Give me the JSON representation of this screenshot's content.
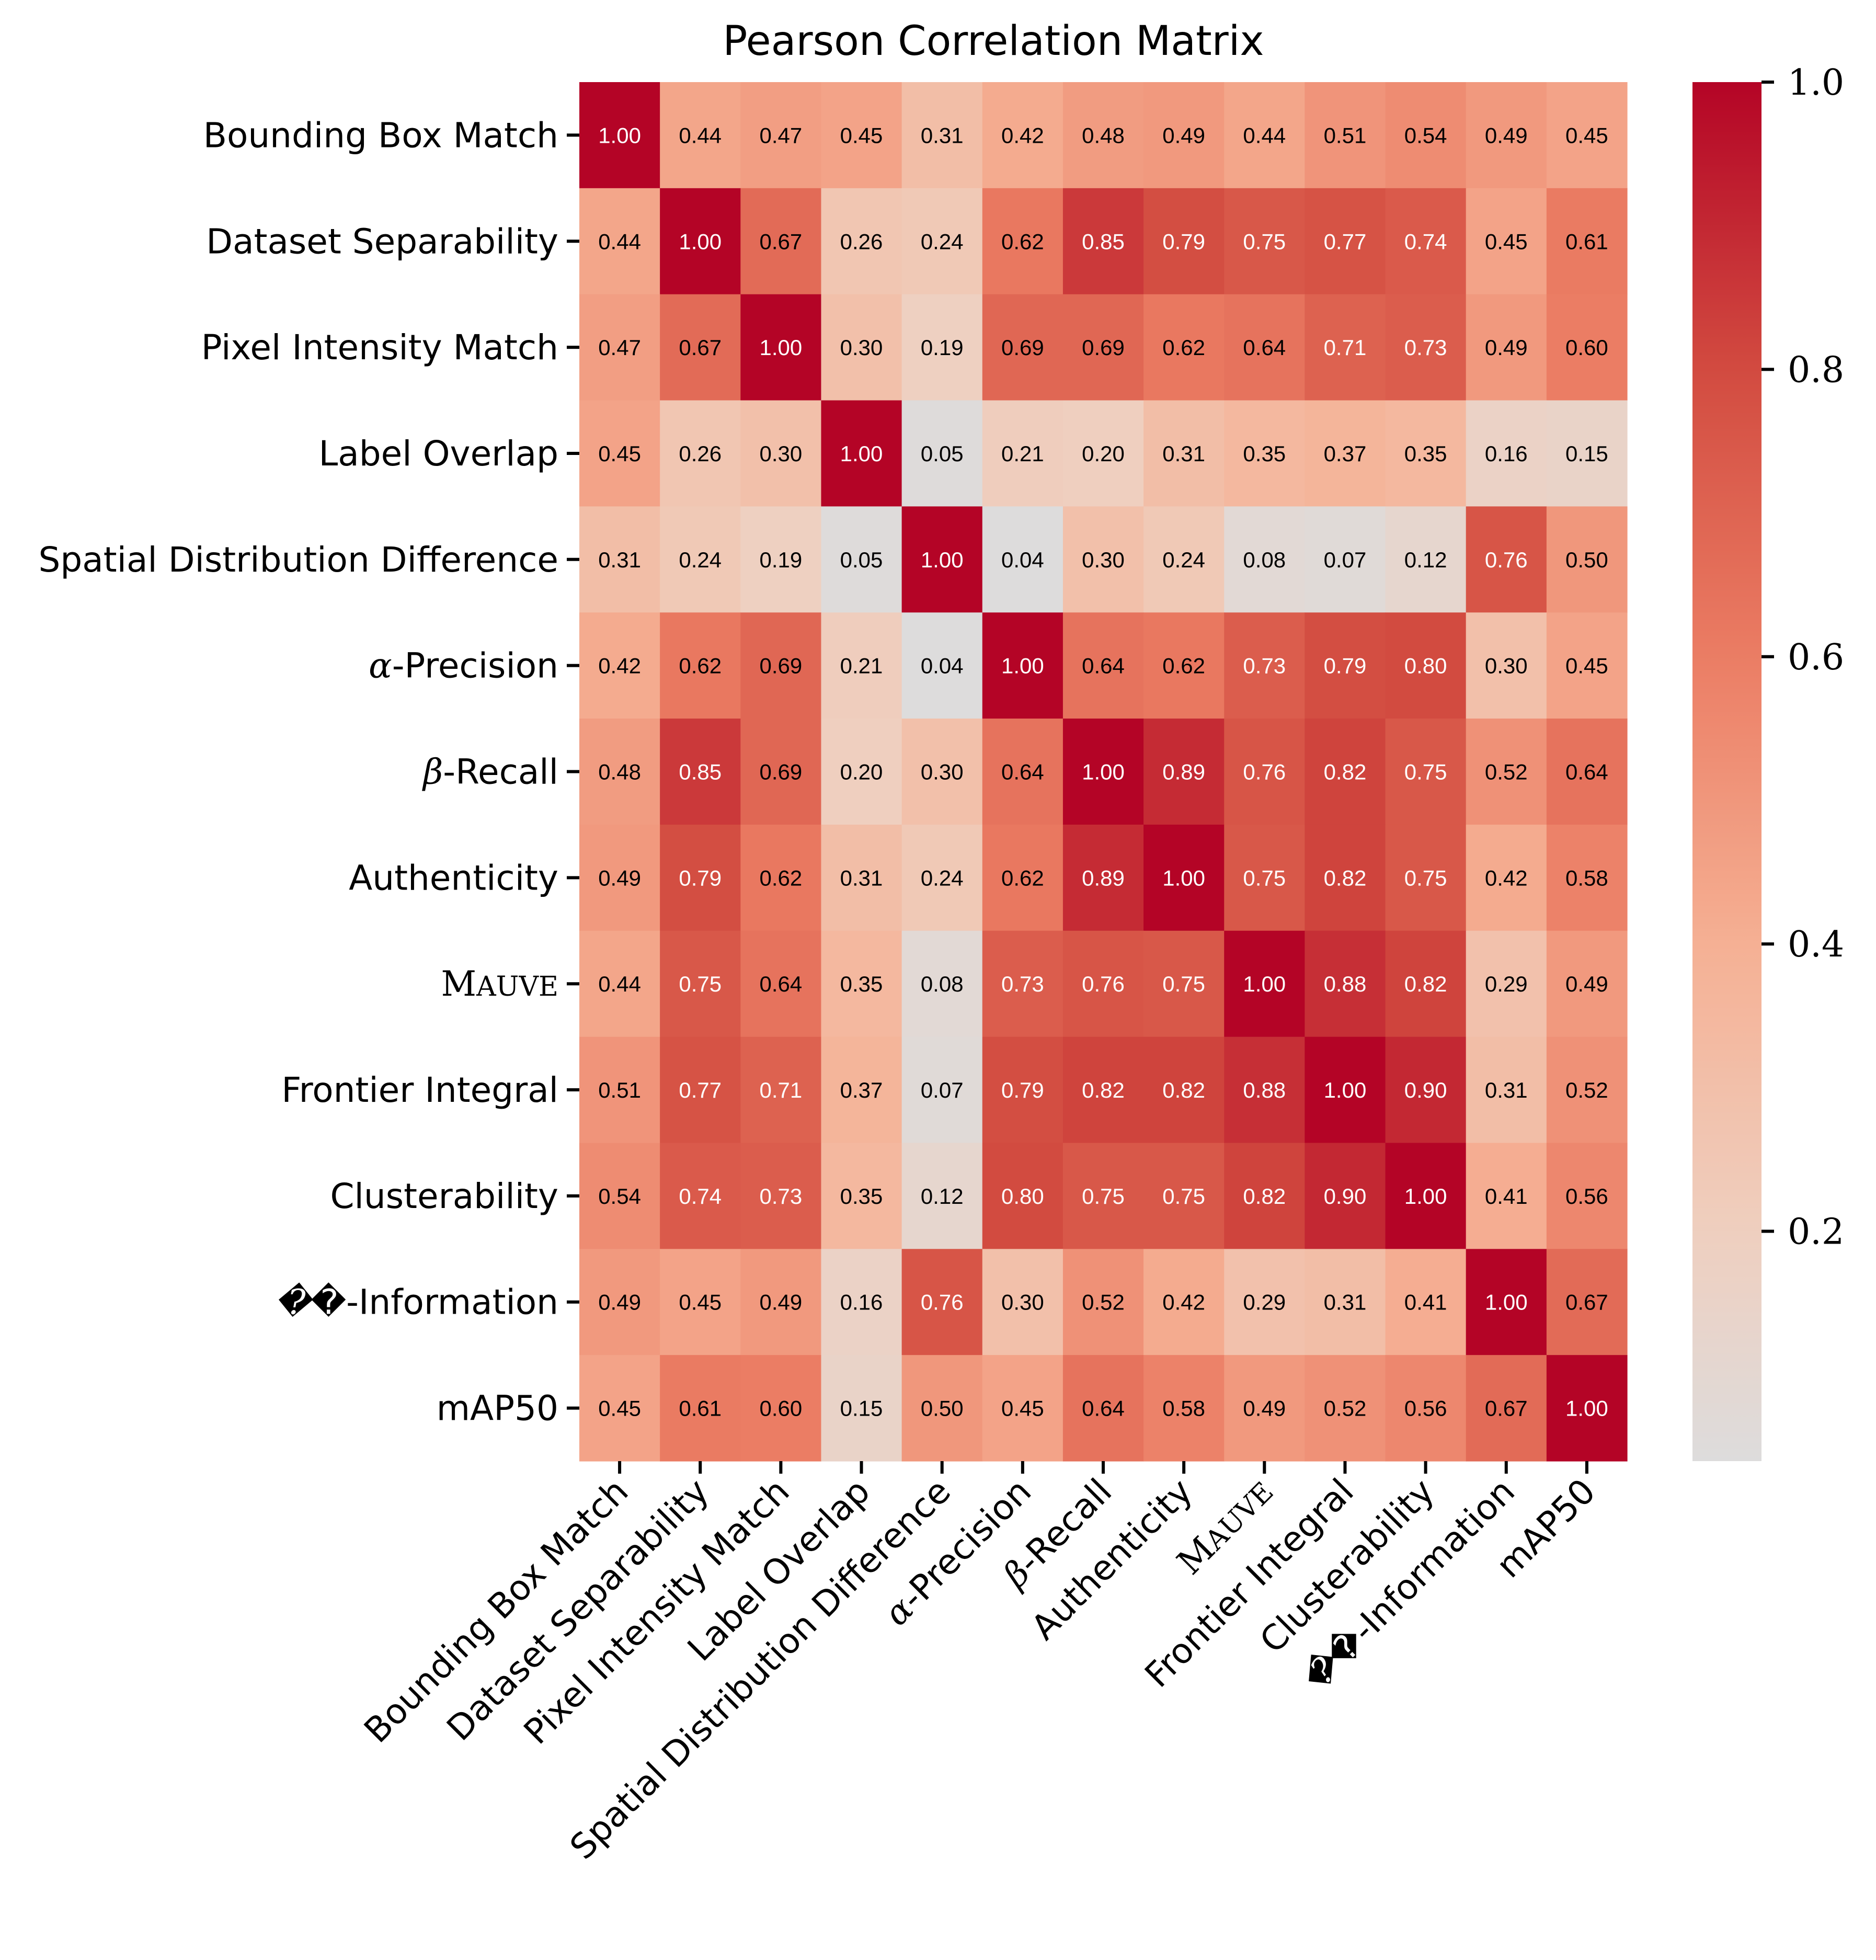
{
  "chart_data": {
    "type": "heatmap",
    "title": "Pearson Correlation Matrix",
    "xlabel": "",
    "ylabel": "",
    "labels": [
      "Bounding Box Match",
      "Dataset Separability",
      "Pixel Intensity Match",
      "Label Overlap",
      "Spatial Distribution Difference",
      "α-Precision",
      "β-Recall",
      "Authenticity",
      "MAUVE",
      "Frontier Integral",
      "Clusterability",
      "𝒱-Information",
      "mAP50"
    ],
    "label_styles": [
      "plain",
      "plain",
      "plain",
      "plain",
      "plain",
      "math",
      "math",
      "plain",
      "smallcaps",
      "plain",
      "plain",
      "math",
      "plain"
    ],
    "values": [
      [
        1.0,
        0.44,
        0.47,
        0.45,
        0.31,
        0.42,
        0.48,
        0.49,
        0.44,
        0.51,
        0.54,
        0.49,
        0.45
      ],
      [
        0.44,
        1.0,
        0.67,
        0.26,
        0.24,
        0.62,
        0.85,
        0.79,
        0.75,
        0.77,
        0.74,
        0.45,
        0.61
      ],
      [
        0.47,
        0.67,
        1.0,
        0.3,
        0.19,
        0.69,
        0.69,
        0.62,
        0.64,
        0.71,
        0.73,
        0.49,
        0.6
      ],
      [
        0.45,
        0.26,
        0.3,
        1.0,
        0.05,
        0.21,
        0.2,
        0.31,
        0.35,
        0.37,
        0.35,
        0.16,
        0.15
      ],
      [
        0.31,
        0.24,
        0.19,
        0.05,
        1.0,
        0.04,
        0.3,
        0.24,
        0.08,
        0.07,
        0.12,
        0.76,
        0.5
      ],
      [
        0.42,
        0.62,
        0.69,
        0.21,
        0.04,
        1.0,
        0.64,
        0.62,
        0.73,
        0.79,
        0.8,
        0.3,
        0.45
      ],
      [
        0.48,
        0.85,
        0.69,
        0.2,
        0.3,
        0.64,
        1.0,
        0.89,
        0.76,
        0.82,
        0.75,
        0.52,
        0.64
      ],
      [
        0.49,
        0.79,
        0.62,
        0.31,
        0.24,
        0.62,
        0.89,
        1.0,
        0.75,
        0.82,
        0.75,
        0.42,
        0.58
      ],
      [
        0.44,
        0.75,
        0.64,
        0.35,
        0.08,
        0.73,
        0.76,
        0.75,
        1.0,
        0.88,
        0.82,
        0.29,
        0.49
      ],
      [
        0.51,
        0.77,
        0.71,
        0.37,
        0.07,
        0.79,
        0.82,
        0.82,
        0.88,
        1.0,
        0.9,
        0.31,
        0.52
      ],
      [
        0.54,
        0.74,
        0.73,
        0.35,
        0.12,
        0.8,
        0.75,
        0.75,
        0.82,
        0.9,
        1.0,
        0.41,
        0.56
      ],
      [
        0.49,
        0.45,
        0.49,
        0.16,
        0.76,
        0.3,
        0.52,
        0.42,
        0.29,
        0.31,
        0.41,
        1.0,
        0.67
      ],
      [
        0.45,
        0.61,
        0.6,
        0.15,
        0.5,
        0.45,
        0.64,
        0.58,
        0.49,
        0.52,
        0.56,
        0.67,
        1.0
      ]
    ],
    "annotation_format": "0.00",
    "colorbar": {
      "vmin": 0.04,
      "vmax": 1.0,
      "ticks": [
        0.2,
        0.4,
        0.6,
        0.8,
        1.0
      ],
      "tick_labels": [
        "0.2",
        "0.4",
        "0.6",
        "0.8",
        "1.0"
      ],
      "placement": "right"
    },
    "colormap": {
      "name": "coolwarm (upper half)",
      "stops": [
        {
          "v": 0.04,
          "color": "#dddcdc"
        },
        {
          "v": 0.2,
          "color": "#efcfbf"
        },
        {
          "v": 0.4,
          "color": "#f5b094"
        },
        {
          "v": 0.6,
          "color": "#eb7d64"
        },
        {
          "v": 0.8,
          "color": "#d24b40"
        },
        {
          "v": 1.0,
          "color": "#b40426"
        }
      ]
    },
    "text_color_dark": "#000000",
    "text_color_light": "#ffffff",
    "text_light_threshold": 0.7,
    "grid": false
  }
}
